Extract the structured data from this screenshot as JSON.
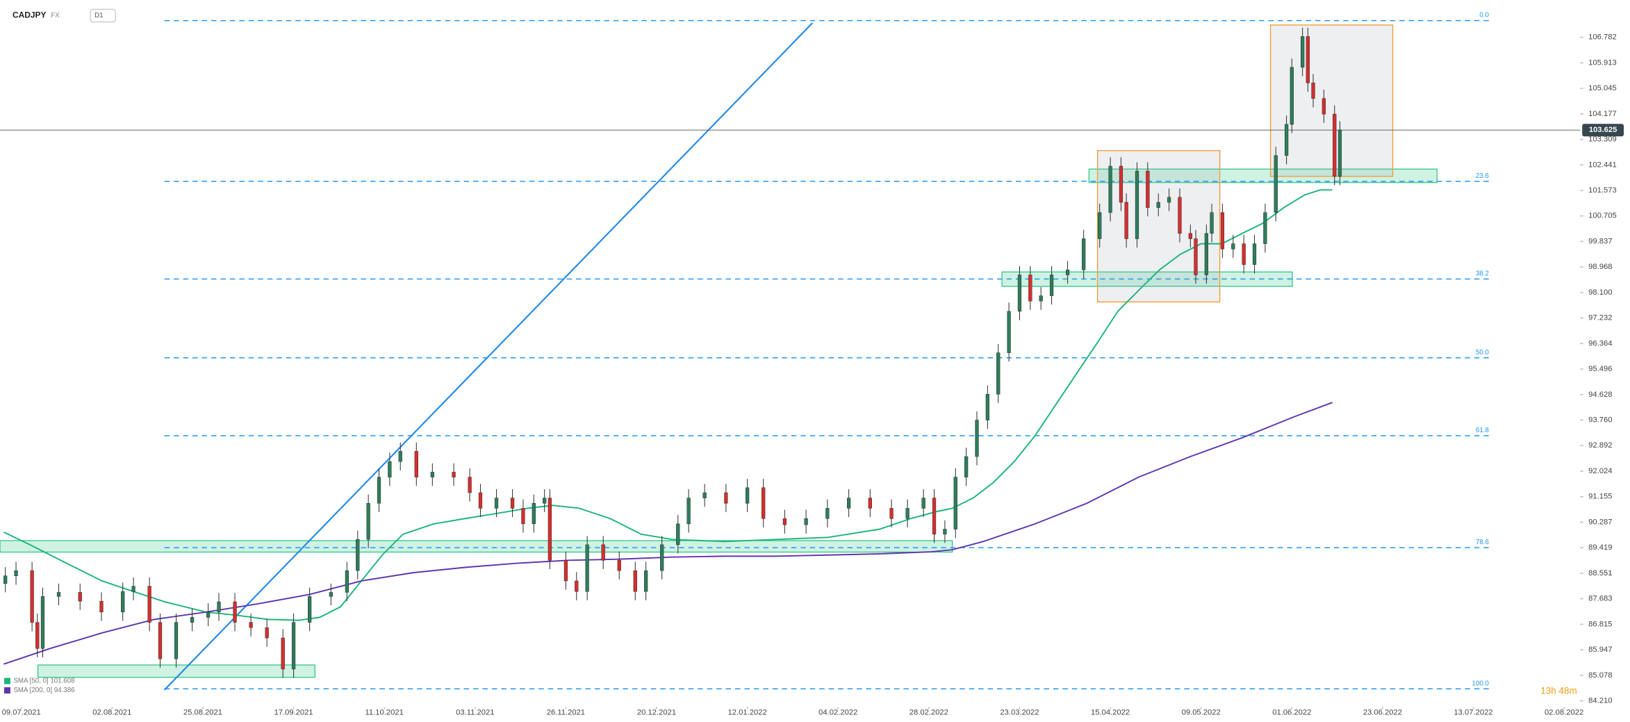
{
  "chart_data": {
    "type": "candlestick",
    "title": "CADJPY",
    "market": "FX",
    "interval": "D1",
    "up_color": "#2e7d5b",
    "down_color": "#d32f2f",
    "wick_color": "#333333",
    "grid": false,
    "x": [
      -3,
      -1,
      2,
      3,
      4,
      7,
      11,
      15,
      19,
      21,
      24,
      26,
      29,
      32,
      35,
      37,
      40,
      43,
      46,
      49,
      51,
      54,
      58,
      61,
      63,
      65,
      67,
      69,
      71,
      74,
      77,
      81,
      84,
      86,
      89,
      92,
      94,
      96,
      98,
      99,
      102,
      104,
      106,
      109,
      112,
      115,
      117,
      120,
      123,
      125,
      128,
      132,
      136,
      139,
      143,
      147,
      151,
      155,
      159,
      163,
      166,
      169,
      171,
      173,
      175,
      177,
      179,
      181,
      183,
      185,
      187,
      189,
      191,
      193,
      196,
      199,
      202,
      204,
      206,
      207,
      209,
      211,
      213,
      215,
      217,
      219,
      220,
      222,
      223,
      225,
      227,
      229,
      231,
      233,
      235,
      237,
      238,
      240,
      241,
      242,
      244,
      246,
      247
    ],
    "open": [
      88.2,
      88.46,
      88.64,
      86.88,
      85.99,
      87.76,
      87.9,
      87.6,
      87.23,
      87.93,
      88.11,
      86.88,
      85.64,
      86.88,
      87.05,
      87.23,
      87.58,
      86.88,
      86.7,
      86.35,
      85.29,
      86.88,
      87.76,
      87.9,
      88.64,
      89.7,
      90.93,
      91.82,
      92.35,
      92.7,
      91.82,
      91.99,
      91.82,
      91.29,
      90.76,
      91.11,
      90.76,
      90.23,
      90.93,
      91.11,
      88.99,
      88.29,
      87.93,
      89.52,
      88.99,
      88.64,
      87.93,
      88.64,
      89.52,
      90.23,
      91.11,
      91.29,
      90.93,
      91.46,
      90.41,
      90.2,
      90.41,
      90.76,
      91.11,
      90.76,
      90.41,
      90.76,
      91.11,
      89.88,
      90.05,
      91.82,
      92.52,
      93.76,
      94.64,
      96.05,
      97.46,
      98.7,
      97.81,
      97.99,
      98.7,
      98.87,
      99.93,
      100.82,
      102.4,
      101.17,
      99.93,
      102.23,
      100.99,
      101.17,
      101.34,
      100.11,
      99.93,
      98.7,
      100.11,
      100.82,
      99.58,
      99.76,
      99.05,
      99.76,
      100.82,
      102.76,
      103.82,
      105.76,
      106.81,
      105.23,
      104.7,
      104.17,
      102.05
    ],
    "high": [
      88.76,
      88.94,
      88.94,
      87.18,
      88.06,
      88.2,
      88.2,
      87.9,
      88.23,
      88.41,
      88.41,
      87.18,
      87.18,
      87.35,
      87.53,
      87.88,
      87.88,
      87.18,
      87.0,
      86.65,
      87.18,
      88.06,
      88.2,
      88.94,
      90.0,
      91.23,
      92.12,
      92.65,
      93.0,
      93.0,
      92.29,
      92.29,
      92.12,
      91.59,
      91.41,
      91.41,
      91.06,
      91.23,
      91.41,
      91.41,
      89.29,
      88.59,
      89.82,
      89.82,
      89.29,
      88.94,
      88.94,
      89.82,
      90.53,
      91.41,
      91.59,
      91.59,
      91.76,
      91.76,
      90.71,
      90.71,
      91.06,
      91.41,
      91.41,
      91.06,
      91.06,
      91.41,
      91.41,
      90.35,
      92.12,
      92.82,
      94.06,
      94.94,
      96.35,
      97.76,
      99.0,
      99.0,
      98.29,
      99.0,
      99.17,
      100.23,
      101.12,
      102.7,
      102.7,
      101.47,
      102.53,
      102.53,
      101.47,
      101.64,
      101.64,
      100.41,
      100.23,
      100.41,
      101.12,
      101.12,
      100.06,
      100.06,
      100.06,
      101.12,
      103.06,
      104.12,
      106.06,
      107.11,
      107.11,
      105.53,
      105.0,
      104.47,
      103.93
    ],
    "low": [
      87.9,
      88.16,
      86.58,
      85.69,
      85.69,
      87.46,
      87.3,
      86.93,
      86.93,
      87.63,
      86.58,
      85.34,
      85.34,
      86.58,
      86.75,
      86.93,
      86.58,
      86.4,
      86.05,
      84.99,
      84.99,
      86.58,
      87.46,
      87.6,
      88.34,
      89.4,
      90.63,
      91.52,
      92.05,
      91.52,
      91.52,
      91.52,
      90.99,
      90.46,
      90.46,
      90.46,
      89.93,
      89.93,
      90.63,
      88.69,
      87.99,
      87.63,
      87.63,
      88.69,
      88.34,
      87.63,
      87.63,
      88.34,
      89.22,
      89.93,
      90.81,
      90.63,
      90.63,
      90.11,
      89.9,
      89.9,
      90.11,
      90.46,
      90.46,
      90.11,
      90.11,
      90.46,
      89.58,
      89.58,
      89.75,
      91.52,
      92.22,
      93.46,
      94.34,
      95.75,
      97.16,
      97.51,
      97.51,
      97.69,
      98.4,
      98.57,
      99.63,
      100.52,
      100.87,
      99.63,
      99.63,
      100.69,
      100.69,
      100.87,
      99.81,
      99.63,
      98.4,
      98.4,
      99.81,
      99.28,
      99.28,
      98.75,
      98.75,
      99.46,
      100.52,
      102.46,
      103.52,
      105.46,
      104.93,
      104.4,
      103.87,
      101.75,
      101.75
    ],
    "close": [
      88.46,
      88.64,
      86.88,
      85.99,
      87.76,
      87.9,
      87.6,
      87.23,
      87.93,
      88.11,
      86.88,
      85.64,
      86.88,
      87.05,
      87.23,
      87.58,
      86.88,
      86.7,
      86.35,
      85.29,
      86.88,
      87.76,
      87.9,
      88.64,
      89.7,
      90.93,
      91.82,
      92.35,
      92.7,
      91.82,
      91.99,
      91.82,
      91.29,
      90.76,
      91.11,
      90.76,
      90.23,
      90.93,
      91.11,
      88.99,
      88.29,
      87.93,
      89.52,
      88.99,
      88.64,
      87.93,
      88.64,
      89.52,
      90.23,
      91.11,
      91.29,
      90.93,
      91.46,
      90.41,
      90.2,
      90.41,
      90.76,
      91.11,
      90.76,
      90.41,
      90.76,
      91.11,
      89.88,
      90.05,
      91.82,
      92.52,
      93.76,
      94.64,
      96.05,
      97.46,
      98.7,
      97.81,
      97.99,
      98.7,
      98.87,
      99.93,
      100.82,
      102.4,
      101.17,
      99.93,
      102.23,
      100.99,
      101.17,
      101.34,
      100.11,
      99.93,
      98.7,
      100.11,
      100.82,
      99.58,
      99.76,
      99.05,
      99.76,
      100.82,
      102.76,
      103.82,
      105.76,
      106.81,
      105.23,
      104.7,
      104.17,
      102.05,
      103.63
    ],
    "xlim": [
      -4,
      292
    ],
    "ylim": [
      84.0,
      108.05
    ],
    "xticks": [
      {
        "value": 0,
        "label": "09.07.2021"
      },
      {
        "value": 17,
        "label": "02.08.2021"
      },
      {
        "value": 34,
        "label": "25.08.2021"
      },
      {
        "value": 51,
        "label": "17.09.2021"
      },
      {
        "value": 68,
        "label": "11.10.2021"
      },
      {
        "value": 85,
        "label": "03.11.2021"
      },
      {
        "value": 102,
        "label": "26.11.2021"
      },
      {
        "value": 119,
        "label": "20.12.2021"
      },
      {
        "value": 136,
        "label": "12.01.2022"
      },
      {
        "value": 153,
        "label": "04.02.2022"
      },
      {
        "value": 170,
        "label": "28.02.2022"
      },
      {
        "value": 187,
        "label": "23.03.2022"
      },
      {
        "value": 204,
        "label": "15.04.2022"
      },
      {
        "value": 221,
        "label": "09.05.2022"
      },
      {
        "value": 238,
        "label": "01.06.2022"
      },
      {
        "value": 255,
        "label": "23.06.2022"
      },
      {
        "value": 272,
        "label": "13.07.2022"
      },
      {
        "value": 289,
        "label": "02.08.2022"
      }
    ],
    "yticks": [
      106.782,
      105.913,
      105.045,
      104.177,
      103.309,
      102.441,
      101.573,
      100.705,
      99.837,
      98.968,
      {
        "value": 98.1,
        "label": "98.100"
      },
      97.232,
      96.364,
      95.496,
      94.628,
      {
        "value": 93.76,
        "label": "93.760"
      },
      92.892,
      92.024,
      91.155,
      90.287,
      89.419,
      88.551,
      87.683,
      86.815,
      85.947,
      85.078,
      {
        "value": 84.21,
        "label": "84.210"
      }
    ],
    "current_price": 103.625,
    "indicators": [
      {
        "name": "SMA [50, 0] 101.608",
        "color": "#1db57a",
        "x": [
          -3.3,
          1.6,
          7.4,
          15.1,
          21.0,
          26.8,
          34.6,
          40.4,
          46.2,
          52.0,
          55.9,
          59.8,
          63.7,
          67.6,
          71.5,
          77.3,
          83.1,
          88.9,
          94.8,
          99.6,
          104.5,
          110.3,
          116.1,
          121.9,
          131.7,
          141.4,
          151.1,
          160.8,
          166.6,
          171.5,
          174.4,
          178.3,
          182.1,
          186.0,
          189.9,
          193.8,
          197.7,
          201.6,
          205.4,
          209.3,
          213.2,
          217.1,
          221.0,
          224.9,
          228.7,
          232.6,
          236.5,
          240.4,
          243.3,
          245.6
        ],
        "values": [
          89.95,
          89.52,
          88.99,
          88.29,
          87.93,
          87.58,
          87.23,
          87.12,
          86.98,
          86.95,
          87.05,
          87.41,
          88.29,
          89.17,
          89.88,
          90.23,
          90.41,
          90.58,
          90.76,
          90.86,
          90.76,
          90.41,
          89.88,
          89.7,
          89.63,
          89.7,
          89.77,
          90.05,
          90.41,
          90.65,
          90.76,
          91.11,
          91.64,
          92.35,
          93.23,
          94.29,
          95.35,
          96.4,
          97.46,
          98.17,
          98.87,
          99.4,
          99.76,
          99.76,
          100.11,
          100.46,
          100.99,
          101.42,
          101.59,
          101.59
        ]
      },
      {
        "name": "SMA [200, 0] 94.386",
        "color": "#5e35b1",
        "x": [
          -3.3,
          5.4,
          15.1,
          24.9,
          34.6,
          44.3,
          54.0,
          63.7,
          73.4,
          83.1,
          92.8,
          102.5,
          112.2,
          121.9,
          131.7,
          141.4,
          151.1,
          160.8,
          170.5,
          174.4,
          180.2,
          189.9,
          199.6,
          209.3,
          219.0,
          228.7,
          238.4,
          245.6
        ],
        "values": [
          85.46,
          85.99,
          86.52,
          86.98,
          87.23,
          87.51,
          87.83,
          88.29,
          88.57,
          88.75,
          88.89,
          88.99,
          89.03,
          89.1,
          89.13,
          89.13,
          89.17,
          89.21,
          89.28,
          89.35,
          89.63,
          90.23,
          90.93,
          91.82,
          92.52,
          93.16,
          93.87,
          94.36
        ]
      }
    ],
    "fib_color": "#2196f3",
    "fib_x": [
      26.8,
      275.3
    ],
    "fib_levels": [
      {
        "label": "0.0",
        "value": 107.35
      },
      {
        "label": "23.6",
        "value": 101.88
      },
      {
        "label": "38.2",
        "value": 98.56
      },
      {
        "label": "50.0",
        "value": 95.88
      },
      {
        "label": "61.8",
        "value": 93.23
      },
      {
        "label": "78.6",
        "value": 89.42
      },
      {
        "label": "100.0",
        "value": 84.62
      }
    ],
    "trendline": {
      "color": "#1e88e5",
      "x": [
        26.8,
        148.2
      ],
      "values": [
        84.58,
        107.27
      ]
    },
    "zone_color": "#26c281",
    "zones": [
      {
        "x": [
          -4,
          174.4
        ],
        "values": [
          89.66,
          89.27
        ]
      },
      {
        "x": [
          3.1,
          55.0
        ],
        "values": [
          85.43,
          85.01
        ]
      },
      {
        "x": [
          183.7,
          238.1
        ],
        "values": [
          98.8,
          98.31
        ]
      },
      {
        "x": [
          200.0,
          265.2
        ],
        "values": [
          102.3,
          101.84
        ]
      }
    ],
    "box_color": "#f39c34",
    "boxes": [
      {
        "x": [
          201.6,
          224.5
        ],
        "values": [
          102.93,
          97.78
        ]
      },
      {
        "x": [
          234.0,
          256.9
        ],
        "values": [
          107.2,
          102.05
        ]
      }
    ],
    "timer": "13h 48m"
  }
}
